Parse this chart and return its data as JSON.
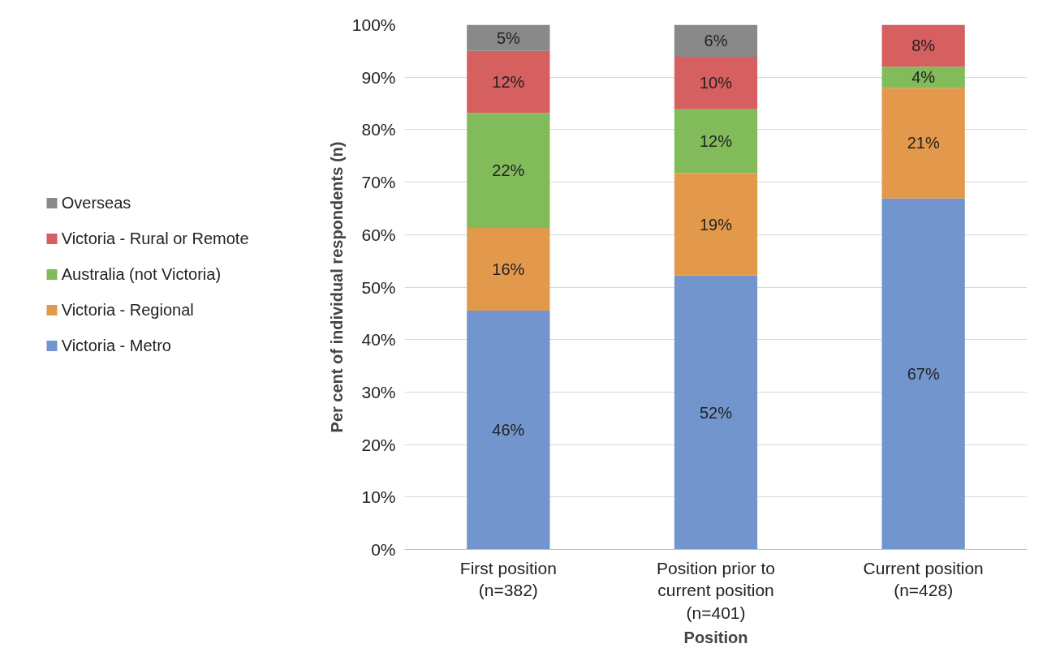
{
  "chart_data": {
    "type": "bar",
    "stacked": true,
    "xlabel": "Position",
    "ylabel": "Per cent of individual respondents (n)",
    "categories": [
      "First position\n(n=382)",
      "Position prior to\ncurrent position\n(n=401)",
      "Current position\n(n=428)"
    ],
    "series": [
      {
        "name": "Victoria - Metro",
        "color": "#7295cd",
        "values": [
          45.5,
          52.2,
          66.9
        ],
        "value_labels": [
          "46%",
          "52%",
          "67%"
        ]
      },
      {
        "name": "Victoria - Regional",
        "color": "#e3994c",
        "values": [
          15.8,
          19.5,
          21.1
        ],
        "value_labels": [
          "16%",
          "19%",
          "21%"
        ]
      },
      {
        "name": "Australia (not Victoria)",
        "color": "#82bb5a",
        "values": [
          21.9,
          12.2,
          4.0
        ],
        "value_labels": [
          "22%",
          "12%",
          "4%"
        ]
      },
      {
        "name": "Victoria - Rural or Remote",
        "color": "#d65f5f",
        "values": [
          11.8,
          10.0,
          8.0
        ],
        "value_labels": [
          "12%",
          "10%",
          "8%"
        ]
      },
      {
        "name": "Overseas",
        "color": "#898989",
        "values": [
          5.0,
          6.1,
          0
        ],
        "value_labels": [
          "5%",
          "6%",
          null
        ]
      }
    ],
    "ylim": [
      0,
      100
    ],
    "yticks": [
      {
        "value": 0,
        "label": "0%"
      },
      {
        "value": 10,
        "label": "10%"
      },
      {
        "value": 20,
        "label": "20%"
      },
      {
        "value": 30,
        "label": "30%"
      },
      {
        "value": 40,
        "label": "40%"
      },
      {
        "value": 50,
        "label": "50%"
      },
      {
        "value": 60,
        "label": "60%"
      },
      {
        "value": 70,
        "label": "70%"
      },
      {
        "value": 80,
        "label": "80%"
      },
      {
        "value": 90,
        "label": "90%"
      },
      {
        "value": 100,
        "label": "100%"
      }
    ],
    "grid": "y",
    "legend": "left"
  }
}
